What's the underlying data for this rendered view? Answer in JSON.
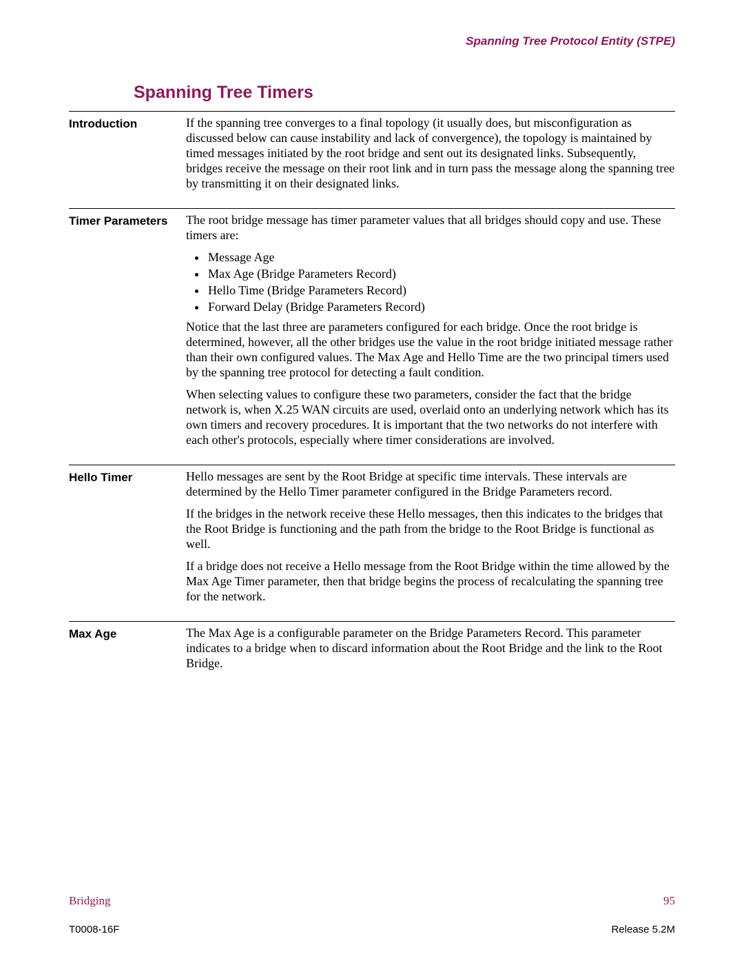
{
  "header": {
    "running_title": "Spanning Tree Protocol Entity (STPE)"
  },
  "title": "Spanning Tree Timers",
  "sections": {
    "intro": {
      "heading": "Introduction",
      "p1": "If the spanning tree converges to a final topology (it usually does, but misconfiguration as discussed below can cause instability and lack of convergence), the topology is maintained by timed messages initiated by the root bridge and sent out its designated links. Subsequently, bridges receive the message on their root link and in turn pass the message along the spanning tree by transmitting it on their designated links."
    },
    "timer_params": {
      "heading": "Timer Parameters",
      "p1": "The root bridge message has timer parameter values that all bridges should copy and use. These timers are:",
      "items": [
        "Message Age",
        "Max Age (Bridge Parameters Record)",
        "Hello Time (Bridge Parameters Record)",
        "Forward Delay (Bridge Parameters Record)"
      ],
      "p2": "Notice that the last three are parameters configured for each bridge. Once the root bridge is determined, however, all the other bridges use the value in the root bridge initiated message rather than their own configured values. The Max Age and Hello Time are the two principal timers used by the spanning tree protocol for detecting a fault condition.",
      "p3": "When selecting values to configure these two parameters, consider the fact that the bridge network is, when X.25 WAN circuits are used, overlaid onto an underlying network which has its own timers and recovery procedures. It is important that the two networks do not interfere with each other's protocols, especially where timer considerations are involved."
    },
    "hello": {
      "heading": "Hello Timer",
      "p1": "Hello messages are sent by the Root Bridge at specific time intervals. These intervals are determined by the Hello Timer parameter configured in the Bridge Parameters record.",
      "p2": "If the bridges in the network receive these Hello messages, then this indicates to the bridges that the Root Bridge is functioning and the path from the bridge to the Root Bridge is functional as well.",
      "p3": "If a bridge does not receive a Hello message from the Root Bridge within the time allowed by the Max Age Timer parameter, then that bridge begins the process of recalculating the spanning tree for the network."
    },
    "maxage": {
      "heading": "Max Age",
      "p1": "The Max Age is a configurable parameter on the Bridge Parameters Record. This parameter indicates to a bridge when to discard information about the Root Bridge and the link to the Root Bridge."
    }
  },
  "footer": {
    "bridging": "Bridging",
    "page_num": "95",
    "doc_id": "T0008-16F",
    "release": "Release 5.2M"
  }
}
